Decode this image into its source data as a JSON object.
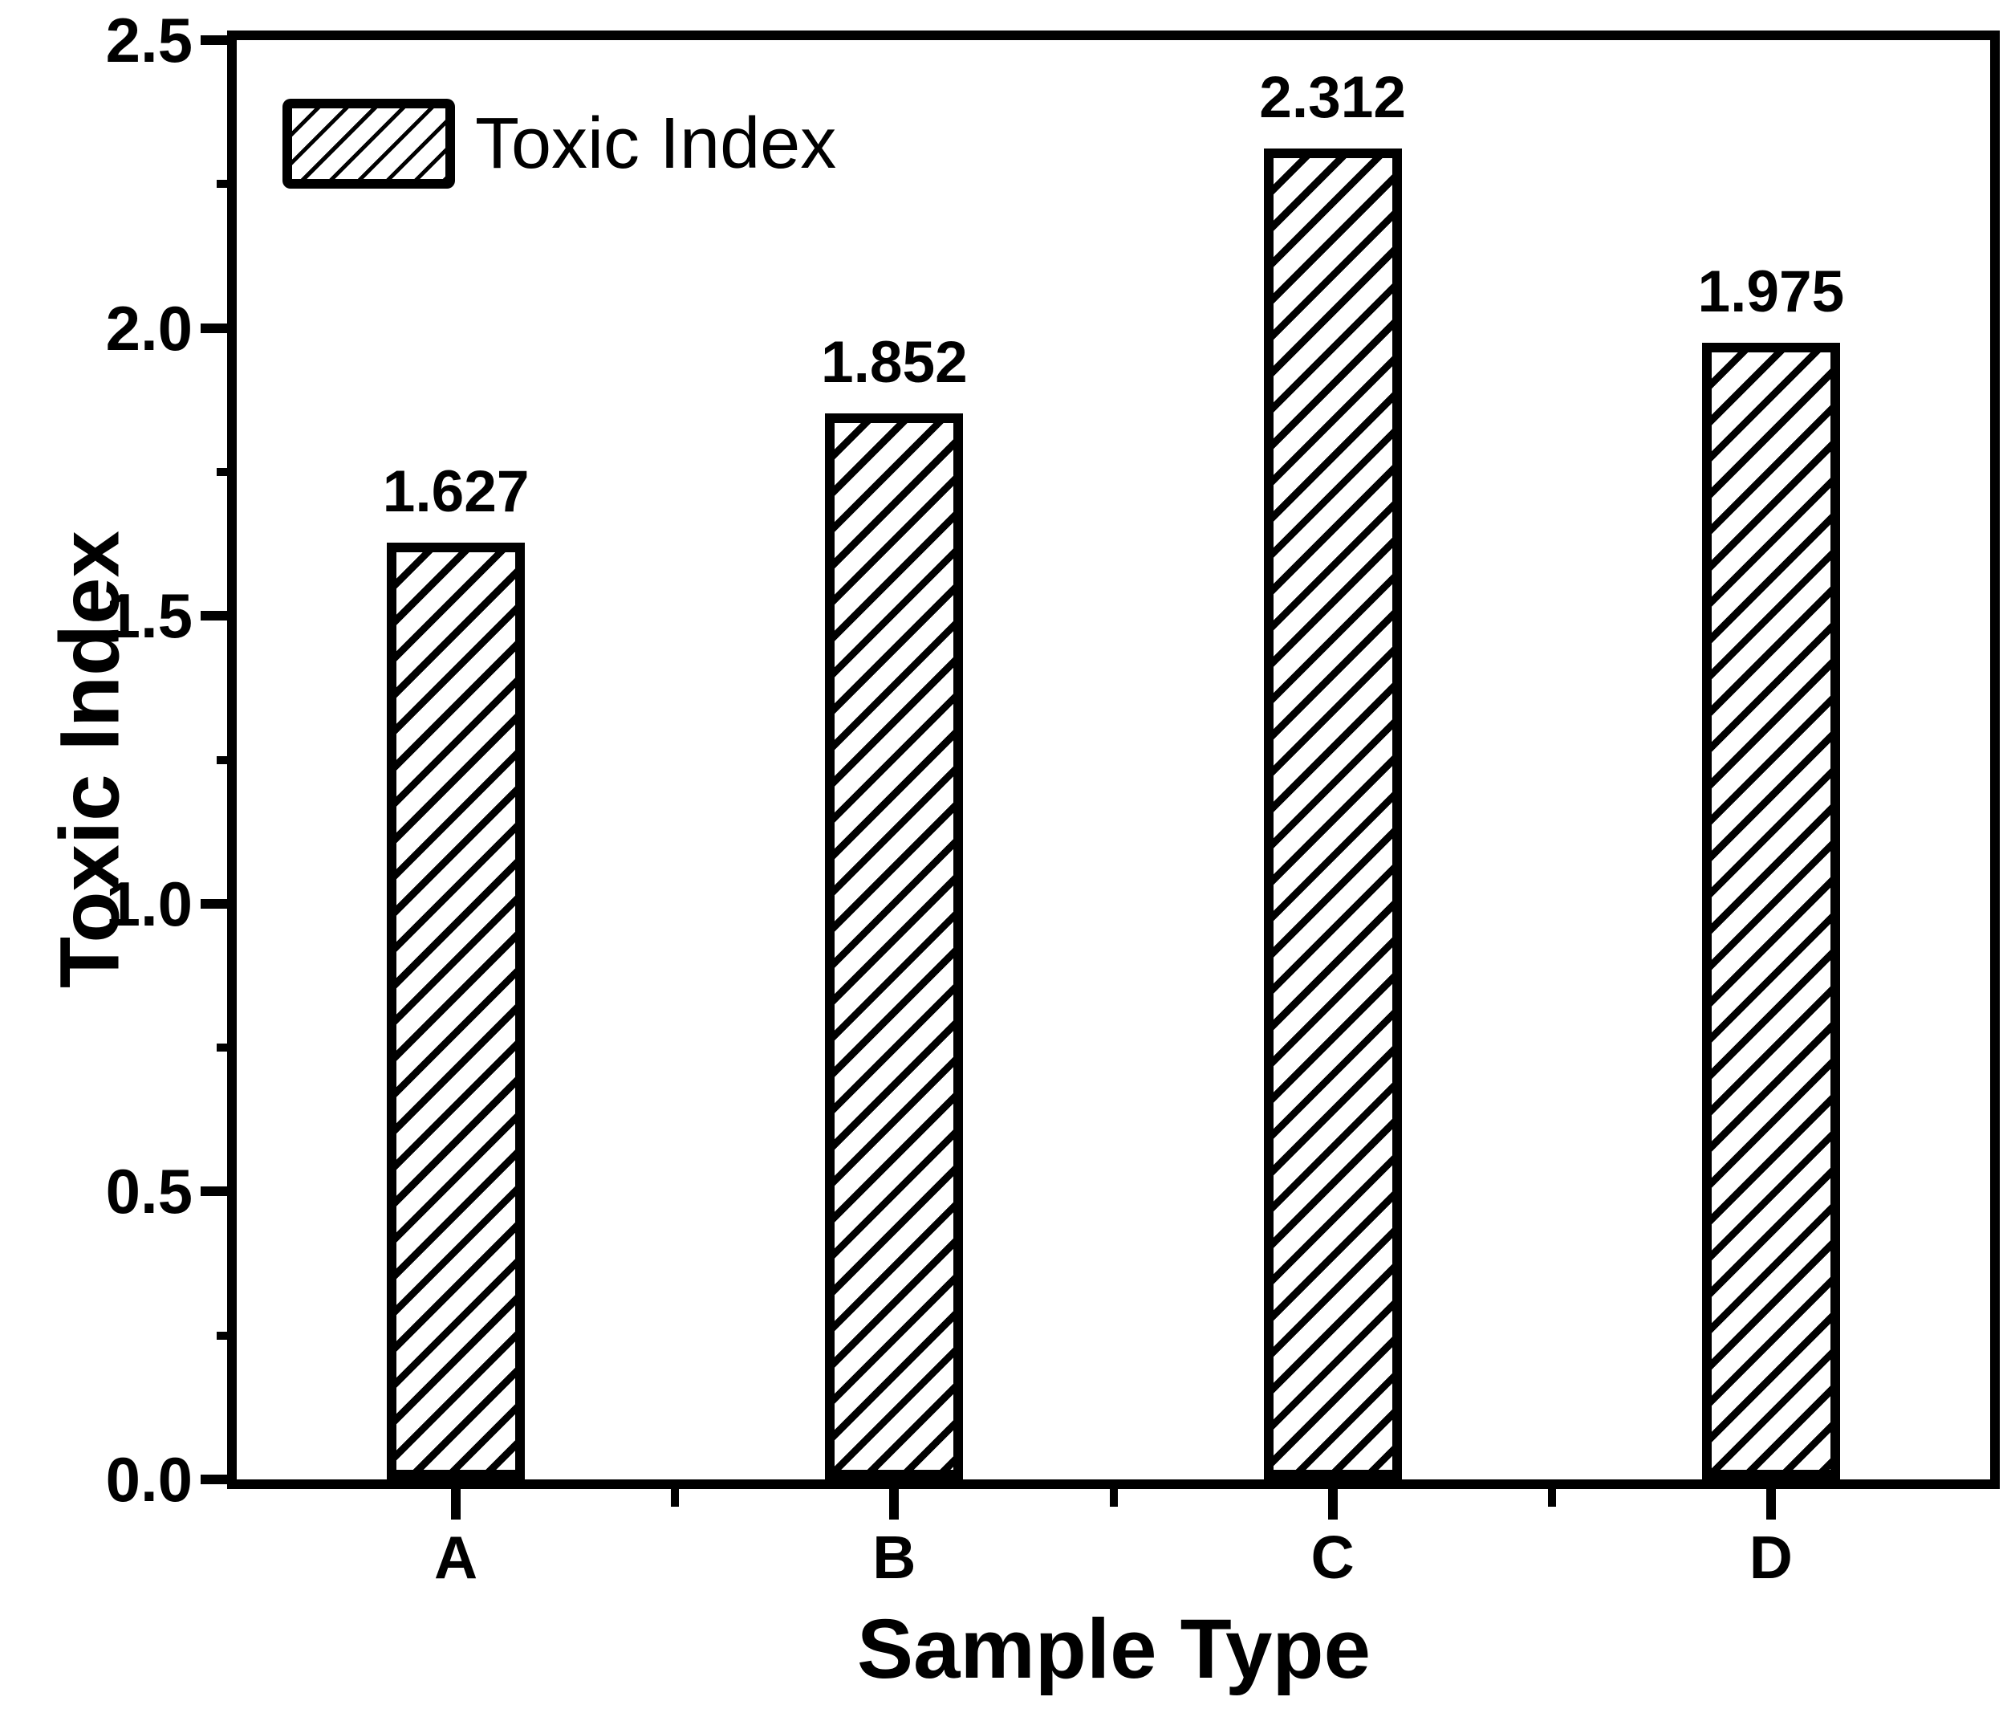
{
  "figure": {
    "background_color": "#ffffff",
    "ink_color": "#000000"
  },
  "chart_data": {
    "type": "bar",
    "title": "",
    "categories": [
      "A",
      "B",
      "C",
      "D"
    ],
    "series": [
      {
        "name": "Toxic Index",
        "values": [
          1.627,
          1.852,
          2.312,
          1.975
        ],
        "value_labels": [
          "1.627",
          "1.852",
          "2.312",
          "1.975"
        ]
      }
    ],
    "xlabel": "Sample Type",
    "ylabel": "Toxic Index",
    "ylim": [
      0.0,
      2.5
    ],
    "ytick_major": [
      {
        "v": 0.0,
        "label": "0.0"
      },
      {
        "v": 0.5,
        "label": "0.5"
      },
      {
        "v": 1.0,
        "label": "1.0"
      },
      {
        "v": 1.5,
        "label": "1.5"
      },
      {
        "v": 2.0,
        "label": "2.0"
      },
      {
        "v": 2.5,
        "label": "2.5"
      }
    ],
    "ytick_minor": [
      0.25,
      0.75,
      1.25,
      1.75,
      2.25
    ],
    "grid": false,
    "legend": {
      "position": "top-left",
      "entries": [
        {
          "label": "Toxic Index",
          "swatch": "diagonal-hatch-forward"
        }
      ]
    },
    "bar_fill": "diagonal-hatch-forward",
    "bar_outline_color": "#000000",
    "bar_fill_background": "#ffffff"
  }
}
